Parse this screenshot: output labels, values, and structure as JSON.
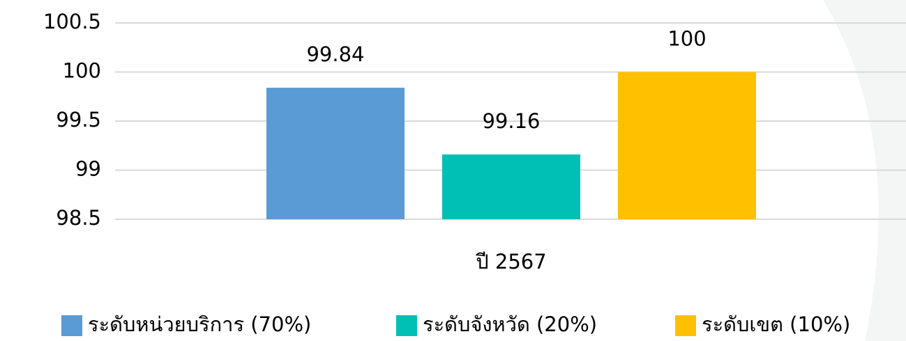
{
  "chart_data": {
    "type": "bar",
    "categories": [
      "ปี 2567"
    ],
    "series": [
      {
        "name": "ระดับหน่วยบริการ (70%)",
        "color": "#5b9bd5",
        "values": [
          99.84
        ]
      },
      {
        "name": "ระดับจังหวัด (20%)",
        "color": "#00c0b5",
        "values": [
          99.16
        ]
      },
      {
        "name": "ระดับเขต (10%)",
        "color": "#ffc000",
        "values": [
          100
        ]
      }
    ],
    "ylim": [
      98.5,
      100.5
    ],
    "yticks": [
      98.5,
      99,
      99.5,
      100,
      100.5
    ],
    "grid": true,
    "legend": "bottom"
  }
}
